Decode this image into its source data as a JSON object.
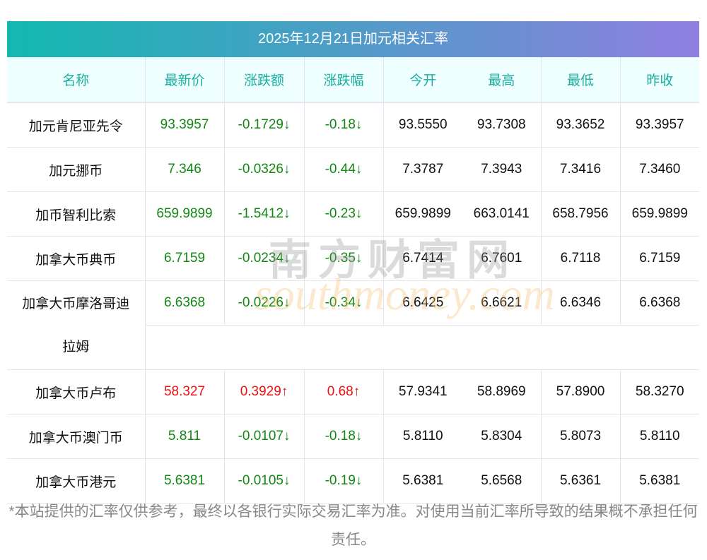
{
  "title": "2025年12月21日加元相关汇率",
  "headers": [
    "名称",
    "最新价",
    "涨跌额",
    "涨跌幅",
    "今开",
    "最高",
    "最低",
    "昨收"
  ],
  "rows": [
    {
      "name": "加元肯尼亚先令",
      "last": "93.3957",
      "chg": "-0.1729↓",
      "pct": "-0.18↓",
      "open": "93.5550",
      "high": "93.7308",
      "low": "93.3652",
      "prev": "93.3957",
      "dir": "down"
    },
    {
      "name": "加元挪币",
      "last": "7.346",
      "chg": "-0.0326↓",
      "pct": "-0.44↓",
      "open": "7.3787",
      "high": "7.3943",
      "low": "7.3416",
      "prev": "7.3460",
      "dir": "down"
    },
    {
      "name": "加币智利比索",
      "last": "659.9899",
      "chg": "-1.5412↓",
      "pct": "-0.23↓",
      "open": "659.9899",
      "high": "663.0141",
      "low": "658.7956",
      "prev": "659.9899",
      "dir": "down"
    },
    {
      "name": "加拿大币典币",
      "last": "6.7159",
      "chg": "-0.0234↓",
      "pct": "-0.35↓",
      "open": "6.7414",
      "high": "6.7601",
      "low": "6.7118",
      "prev": "6.7159",
      "dir": "down"
    },
    {
      "name": "加拿大币摩洛哥迪",
      "name2": "拉姆",
      "last": "6.6368",
      "chg": "-0.0226↓",
      "pct": "-0.34↓",
      "open": "6.6425",
      "high": "6.6621",
      "low": "6.6346",
      "prev": "6.6368",
      "dir": "down"
    },
    {
      "name": "加拿大币卢布",
      "last": "58.327",
      "chg": "0.3929↑",
      "pct": "0.68↑",
      "open": "57.9341",
      "high": "58.8969",
      "low": "57.8900",
      "prev": "58.3270",
      "dir": "up"
    },
    {
      "name": "加拿大币澳门币",
      "last": "5.811",
      "chg": "-0.0107↓",
      "pct": "-0.18↓",
      "open": "5.8110",
      "high": "5.8304",
      "low": "5.8073",
      "prev": "5.8110",
      "dir": "down"
    },
    {
      "name": "加拿大币港元",
      "last": "5.6381",
      "chg": "-0.0105↓",
      "pct": "-0.19↓",
      "open": "5.6381",
      "high": "5.6568",
      "low": "5.6361",
      "prev": "5.6381",
      "dir": "down"
    }
  ],
  "watermark": {
    "cn": "南方财富网",
    "en": "southmoney.com"
  },
  "footer": "*本站提供的汇率仅供参考，最终以各银行实际交易汇率为准。对使用当前汇率所导致的结果概不承担任何责任。",
  "colors": {
    "up": "#ee1111",
    "down": "#118811",
    "header_text": "#1aaea0"
  }
}
